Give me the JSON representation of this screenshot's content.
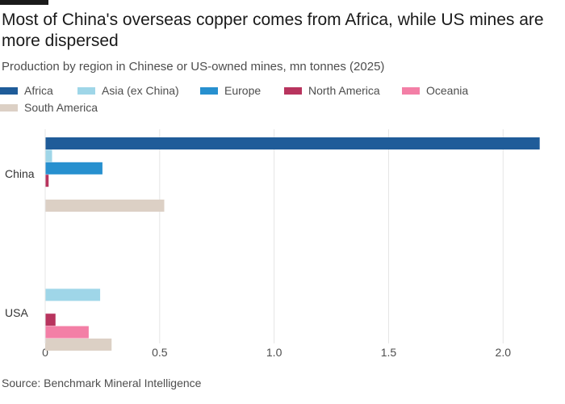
{
  "title": "Most of China's overseas copper comes from Africa, while US mines are more dispersed",
  "subtitle": "Production by region in Chinese or US-owned mines, mn tonnes (2025)",
  "source": "Source: Benchmark Mineral Intelligence",
  "chart_data": {
    "type": "bar",
    "orientation": "horizontal",
    "title": "Most of China's overseas copper comes from Africa, while US mines are more dispersed",
    "subtitle": "Production by region in Chinese or US-owned mines, mn tonnes (2025)",
    "xlabel": "",
    "ylabel": "",
    "xlim": [
      0,
      2.2
    ],
    "xticks": [
      0,
      0.5,
      1.0,
      1.5,
      2.0
    ],
    "xtick_labels": [
      "0",
      "0.5",
      "1.0",
      "1.5",
      "2.0"
    ],
    "grid": true,
    "legend_position": "top",
    "categories": [
      "China",
      "USA"
    ],
    "series": [
      {
        "name": "Africa",
        "color": "#1f5c99",
        "values": [
          2.16,
          0
        ]
      },
      {
        "name": "Asia (ex China)",
        "color": "#9fd6e8",
        "values": [
          0.03,
          0.24
        ]
      },
      {
        "name": "Europe",
        "color": "#2790cf",
        "values": [
          0.25,
          0
        ]
      },
      {
        "name": "North America",
        "color": "#b8345e",
        "values": [
          0.015,
          0.045
        ]
      },
      {
        "name": "Oceania",
        "color": "#f37fa6",
        "values": [
          0,
          0.19
        ]
      },
      {
        "name": "South America",
        "color": "#dcd0c5",
        "values": [
          0.52,
          0.29
        ]
      }
    ]
  }
}
